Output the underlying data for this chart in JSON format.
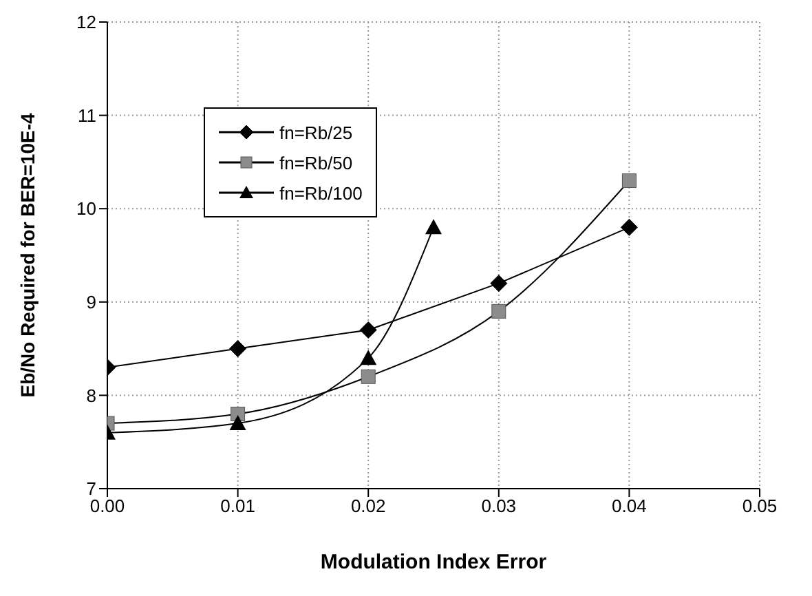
{
  "chart_data": {
    "type": "line",
    "xlabel": "Modulation Index Error",
    "ylabel": "Eb/No Required for BER=10E-4",
    "xlim": [
      0,
      0.05
    ],
    "xticks": [
      {
        "value": 0,
        "label": "0.00"
      },
      {
        "value": 0.01,
        "label": "0.01"
      },
      {
        "value": 0.02,
        "label": "0.02"
      },
      {
        "value": 0.03,
        "label": "0.03"
      },
      {
        "value": 0.04,
        "label": "0.04"
      },
      {
        "value": 0.05,
        "label": "0.05"
      }
    ],
    "ylim": [
      7,
      12
    ],
    "yticks": [
      7,
      8,
      9,
      10,
      11,
      12
    ],
    "grid": true,
    "legend": "top left",
    "line_style": "solid",
    "series": [
      {
        "name": "fn=Rb/25",
        "color": "#000000",
        "marker": "diamond",
        "x": [
          0,
          0.01,
          0.02,
          0.03,
          0.04
        ],
        "values": [
          8.3,
          8.5,
          8.7,
          9.2,
          9.8
        ]
      },
      {
        "name": "fn=Rb/50",
        "color": "#8c8c8c",
        "marker": "square",
        "x": [
          0,
          0.01,
          0.02,
          0.03,
          0.04
        ],
        "values": [
          7.7,
          7.8,
          8.2,
          8.9,
          10.3
        ]
      },
      {
        "name": "fn=Rb/100",
        "color": "#000000",
        "marker": "triangle",
        "x": [
          0,
          0.01,
          0.02,
          0.025
        ],
        "values": [
          7.6,
          7.7,
          8.4,
          9.8
        ]
      }
    ]
  }
}
